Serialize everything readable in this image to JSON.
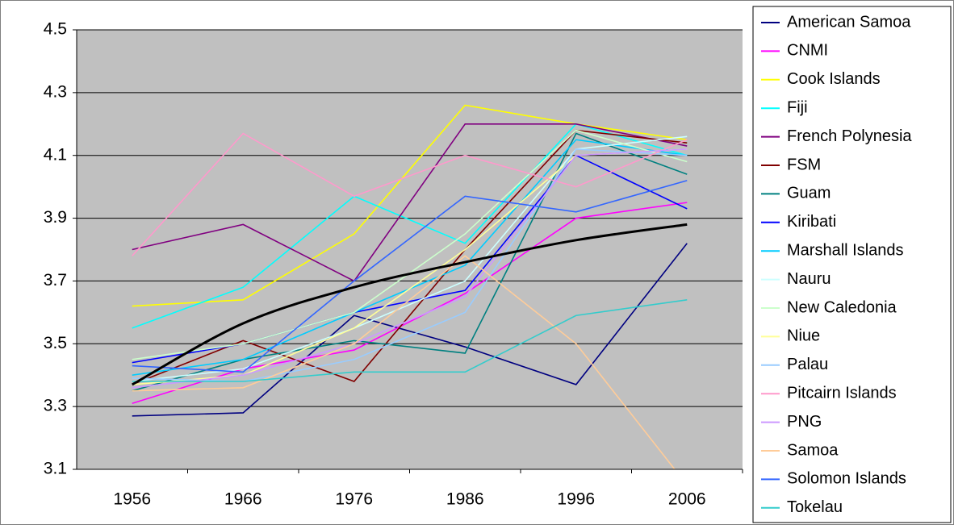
{
  "chart_data": {
    "type": "line",
    "categories": [
      "1956",
      "1966",
      "1976",
      "1986",
      "1996",
      "2006"
    ],
    "ylim": [
      3.1,
      4.5
    ],
    "yticks": [
      3.1,
      3.3,
      3.5,
      3.7,
      3.9,
      4.1,
      4.3,
      4.5
    ],
    "grid": true,
    "plot_background": "#c0c0c0",
    "legend": "right",
    "series": [
      {
        "name": "American Samoa",
        "color": "#000080",
        "values": [
          3.27,
          3.28,
          3.59,
          3.49,
          3.37,
          3.82
        ]
      },
      {
        "name": "CNMI",
        "color": "#ff00ff",
        "values": [
          3.31,
          3.42,
          3.48,
          3.66,
          3.9,
          3.95
        ]
      },
      {
        "name": "Cook Islands",
        "color": "#ffff00",
        "values": [
          3.62,
          3.64,
          3.85,
          4.26,
          4.2,
          4.15
        ]
      },
      {
        "name": "Fiji",
        "color": "#00ffff",
        "values": [
          3.55,
          3.68,
          3.97,
          3.82,
          4.2,
          4.1
        ]
      },
      {
        "name": "French Polynesia",
        "color": "#800080",
        "values": [
          3.8,
          3.88,
          3.7,
          4.2,
          4.2,
          4.13
        ]
      },
      {
        "name": "FSM",
        "color": "#800000",
        "values": [
          3.37,
          3.51,
          3.38,
          3.8,
          4.18,
          4.14
        ]
      },
      {
        "name": "Guam",
        "color": "#008080",
        "values": [
          3.35,
          3.45,
          3.51,
          3.47,
          4.17,
          4.04
        ]
      },
      {
        "name": "Kiribati",
        "color": "#0000ff",
        "values": [
          3.44,
          3.5,
          3.6,
          3.67,
          4.1,
          3.93
        ]
      },
      {
        "name": "Marshall Islands",
        "color": "#00ccff",
        "values": [
          3.4,
          3.45,
          3.6,
          3.75,
          4.15,
          4.1
        ]
      },
      {
        "name": "Nauru",
        "color": "#ccffff",
        "values": [
          3.38,
          3.42,
          3.55,
          3.7,
          4.12,
          4.16
        ]
      },
      {
        "name": "New Caledonia",
        "color": "#ccffcc",
        "values": [
          3.45,
          3.5,
          3.6,
          3.85,
          4.18,
          4.08
        ]
      },
      {
        "name": "Niue",
        "color": "#ffff99",
        "values": [
          3.37,
          3.4,
          3.55,
          3.8,
          4.1,
          4.12
        ]
      },
      {
        "name": "Palau",
        "color": "#99ccff",
        "values": [
          3.39,
          3.38,
          3.45,
          3.6,
          4.12,
          4.1
        ]
      },
      {
        "name": "Pitcairn Islands",
        "color": "#ff99cc",
        "values": [
          3.78,
          4.17,
          3.97,
          4.1,
          4.0,
          4.15
        ]
      },
      {
        "name": "PNG",
        "color": "#cc99ff",
        "values": [
          3.36,
          3.4,
          3.5,
          3.65,
          4.1,
          4.12
        ]
      },
      {
        "name": "Samoa",
        "color": "#ffcc99",
        "values": [
          3.35,
          3.36,
          3.5,
          3.78,
          3.5,
          3.05
        ]
      },
      {
        "name": "Solomon Islands",
        "color": "#3366ff",
        "values": [
          3.43,
          3.41,
          3.7,
          3.97,
          3.92,
          4.02
        ]
      },
      {
        "name": "Tokelau",
        "color": "#33cccc",
        "values": [
          3.38,
          3.38,
          3.41,
          3.41,
          3.59,
          3.64
        ]
      }
    ],
    "trendline": {
      "color": "#000000",
      "values": [
        3.37,
        3.565,
        3.68,
        3.76,
        3.83,
        3.88
      ]
    }
  }
}
